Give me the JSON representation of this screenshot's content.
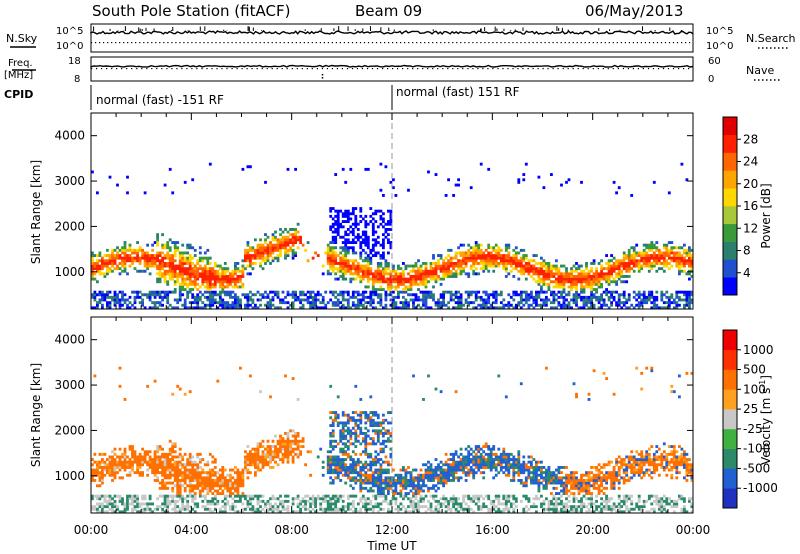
{
  "header": {
    "station": "South Pole Station (fitACF)",
    "beam": "Beam 09",
    "date": "06/May/2013"
  },
  "strip_panels": {
    "left_labels": {
      "nsky": "N.Sky",
      "freq_line1": "Freq.",
      "freq_line2": "[MHz]",
      "cpid": "CPID"
    },
    "right_labels": {
      "nsearch": "N.Search",
      "nave": "Nave"
    },
    "noise_ticks_left": [
      "10^5",
      "10^0"
    ],
    "noise_ticks_right": [
      "10^5",
      "10^0"
    ],
    "freq_ticks": [
      "18",
      "8"
    ],
    "nave_ticks": [
      "60",
      "0"
    ],
    "cpid_segments": [
      {
        "label": "normal (fast) -151 RF",
        "start": 0,
        "end": 12
      },
      {
        "label": "normal (fast) 151 RF",
        "start": 12,
        "end": 24
      }
    ]
  },
  "chart_data": [
    {
      "type": "heatmap",
      "name": "power",
      "xlabel": "",
      "ylabel": "Slant Range [km]",
      "xlim": [
        0,
        24
      ],
      "ylim": [
        180,
        4500
      ],
      "yticks": [
        "1000",
        "2000",
        "3000",
        "4000"
      ],
      "colorbar": {
        "label": "Power [dB]",
        "ticks": [
          "4",
          "8",
          "12",
          "16",
          "20",
          "24",
          "28"
        ],
        "colors": [
          "#0000ff",
          "#2050d0",
          "#2a7f6e",
          "#3a9a3a",
          "#a8c83a",
          "#ffd700",
          "#ffa500",
          "#ff6600",
          "#ff2000",
          "#e00000"
        ]
      }
    },
    {
      "type": "heatmap",
      "name": "velocity",
      "xlabel": "Time UT",
      "ylabel": "Slant Range [km]",
      "xlim": [
        0,
        24
      ],
      "ylim": [
        180,
        4500
      ],
      "yticks": [
        "1000",
        "2000",
        "3000",
        "4000"
      ],
      "xticks": [
        "00:00",
        "04:00",
        "08:00",
        "12:00",
        "16:00",
        "20:00",
        "00:00"
      ],
      "colorbar": {
        "label": "Velocity [m s^-1]",
        "ticks": [
          "1000",
          "500",
          "100",
          "25",
          "-25",
          "-100",
          "-500",
          "-1000"
        ],
        "colors": [
          "#2030c0",
          "#2060d0",
          "#2a8a6a",
          "#40b040",
          "#c8c8c8",
          "#ffa020",
          "#ff7000",
          "#ff3000",
          "#ee0000"
        ]
      }
    }
  ]
}
